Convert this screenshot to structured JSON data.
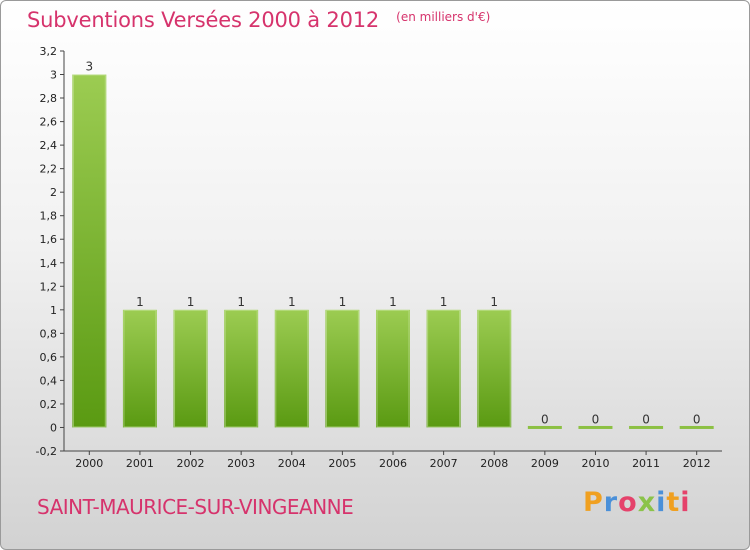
{
  "header": {
    "title": "Subventions Versées 2000 à 2012",
    "unit": "(en milliers d'€)"
  },
  "footer": {
    "commune": "SAINT-MAURICE-SUR-VINGEANNE",
    "logo_letters": [
      "P",
      "r",
      "o",
      "x",
      "i",
      "t",
      "i"
    ],
    "logo_colors": [
      "#f0a020",
      "#4a90d9",
      "#e5426b",
      "#8bc34a",
      "#4a90d9",
      "#f0a020",
      "#e5426b"
    ]
  },
  "chart_data": {
    "type": "bar",
    "categories": [
      "2000",
      "2001",
      "2002",
      "2003",
      "2004",
      "2005",
      "2006",
      "2007",
      "2008",
      "2009",
      "2010",
      "2011",
      "2012"
    ],
    "values": [
      3,
      1,
      1,
      1,
      1,
      1,
      1,
      1,
      1,
      0,
      0,
      0,
      0
    ],
    "data_labels": [
      "3",
      "1",
      "1",
      "1",
      "1",
      "1",
      "1",
      "1",
      "1",
      "0",
      "0",
      "0",
      "0"
    ],
    "yticks": [
      -0.2,
      0,
      0.2,
      0.4,
      0.6,
      0.8,
      1,
      1.2,
      1.4,
      1.6,
      1.8,
      2,
      2.2,
      2.4,
      2.6,
      2.8,
      3,
      3.2
    ],
    "ytick_labels": [
      "-0,2",
      "0",
      "0,2",
      "0,4",
      "0,6",
      "0,8",
      "1",
      "1,2",
      "1,4",
      "1,6",
      "1,8",
      "2",
      "2,2",
      "2,4",
      "2,6",
      "2,8",
      "3",
      "3,2"
    ],
    "ylim": [
      -0.2,
      3.2
    ],
    "grid": false,
    "legend": "none",
    "bar_color_top": "#9ccc52",
    "bar_color_bottom": "#5a9a12"
  }
}
